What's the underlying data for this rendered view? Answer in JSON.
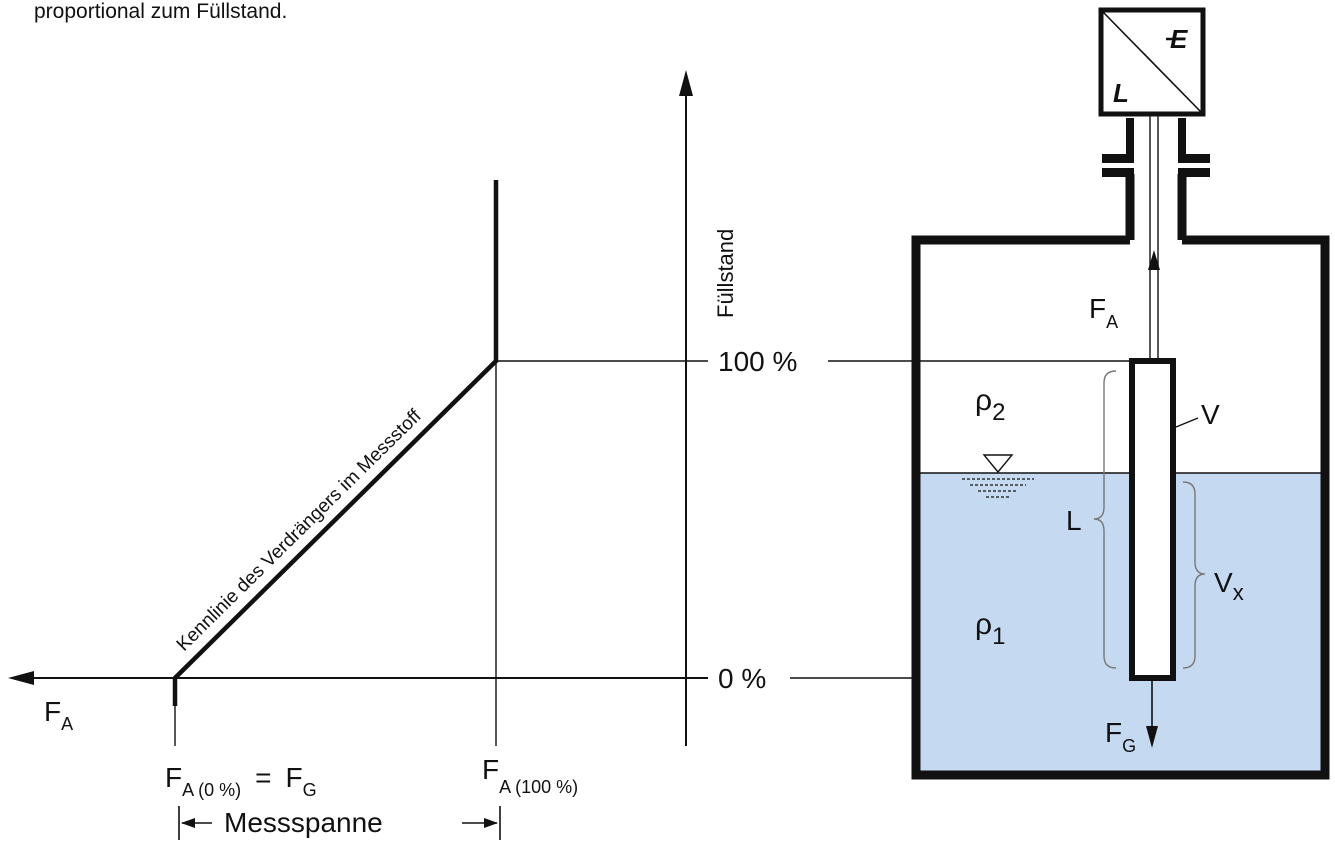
{
  "caption": "proportional zum Füllstand.",
  "chart": {
    "y_axis_label": "Füllstand",
    "x_axis_symbol": "F",
    "x_axis_symbol_sub": "A",
    "level_100_label": "100 %",
    "level_0_label": "0 %",
    "curve_label": "Kennlinie des Verdrängers im Messstoff",
    "fa0": {
      "main": "F",
      "sub": "A (0 %)",
      "equals": "=",
      "rhs_main": "F",
      "rhs_sub": "G"
    },
    "fa100": {
      "main": "F",
      "sub": "A (100 %)"
    },
    "span_label": "Messspanne"
  },
  "tank": {
    "transmitter": {
      "top_right_letter": "E",
      "bottom_left_letter": "L"
    },
    "force_up": {
      "main": "F",
      "sub": "A"
    },
    "force_down": {
      "main": "F",
      "sub": "G"
    },
    "rho2": {
      "main": "ρ",
      "sub": "2"
    },
    "rho1": {
      "main": "ρ",
      "sub": "1"
    },
    "volume_label": "V",
    "vx_label": {
      "main": "V",
      "sub": "x"
    },
    "length_label": "L",
    "liquid_color": "#c5daf0"
  }
}
